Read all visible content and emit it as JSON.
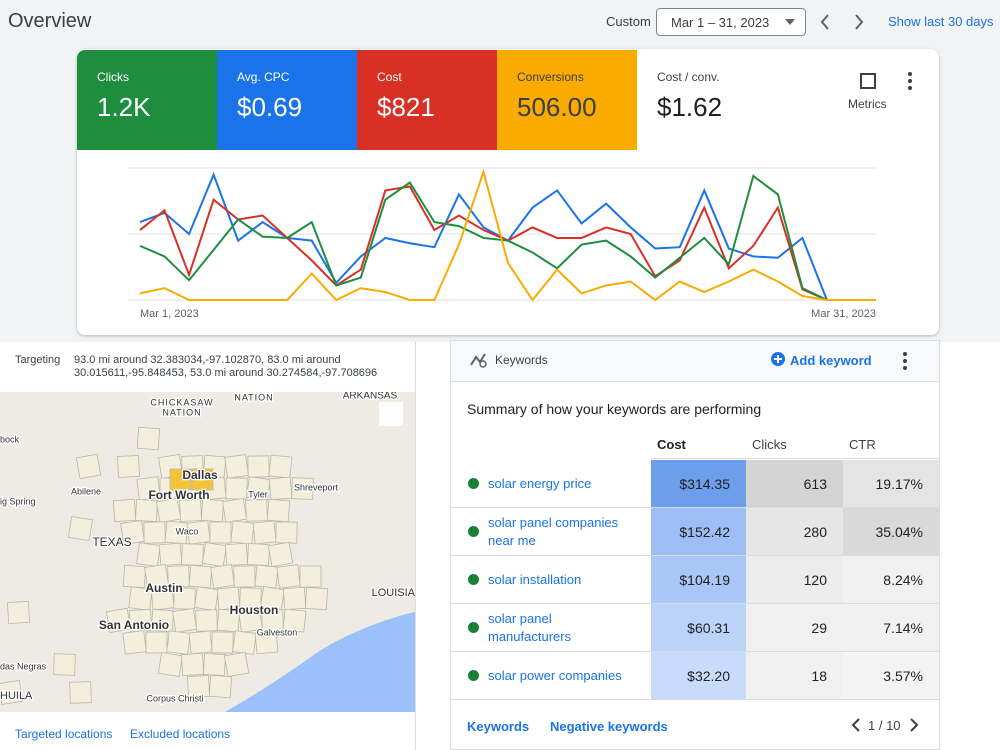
{
  "header": {
    "title": "Overview",
    "range_label": "Custom",
    "date_range": "Mar 1 – 31, 2023",
    "show_last": "Show last 30 days"
  },
  "metrics": [
    {
      "label": "Clicks",
      "value": "1.2K",
      "color": "#1e8e3e"
    },
    {
      "label": "Avg. CPC",
      "value": "$0.69",
      "color": "#1a73e8"
    },
    {
      "label": "Cost",
      "value": "$821",
      "color": "#d93025"
    },
    {
      "label": "Conversions",
      "value": "506.00",
      "color": "#f9ab00"
    },
    {
      "label": "Cost / conv.",
      "value": "$1.62",
      "color": "#ffffff"
    }
  ],
  "metrics_button": "Metrics",
  "chart_data": {
    "type": "line",
    "categories": [
      "Mar 1, 2023",
      null,
      null,
      null,
      null,
      null,
      null,
      null,
      null,
      null,
      null,
      null,
      null,
      null,
      null,
      null,
      null,
      null,
      null,
      null,
      null,
      null,
      null,
      null,
      null,
      null,
      null,
      null,
      null,
      null,
      "Mar 31, 2023"
    ],
    "ylim": [
      0,
      100
    ],
    "series": [
      {
        "color": "#1a73e8",
        "values": [
          59,
          66,
          50,
          95,
          45,
          59,
          47,
          45,
          13,
          33,
          47,
          43,
          40,
          80,
          55,
          45,
          70,
          83,
          58,
          73,
          55,
          39,
          40,
          83,
          39,
          33,
          32,
          47,
          0,
          0,
          0
        ]
      },
      {
        "color": "#d93025",
        "values": [
          53,
          68,
          19,
          76,
          61,
          64,
          47,
          30,
          11,
          23,
          83,
          86,
          53,
          64,
          53,
          45,
          55,
          47,
          47,
          55,
          50,
          18,
          30,
          70,
          24,
          41,
          70,
          8,
          0,
          0,
          0
        ]
      },
      {
        "color": "#1e8e3e",
        "values": [
          41,
          33,
          15,
          38,
          61,
          48,
          47,
          59,
          11,
          17,
          76,
          89,
          59,
          56,
          47,
          45,
          36,
          24,
          42,
          45,
          33,
          17,
          32,
          47,
          27,
          94,
          80,
          9,
          0,
          0,
          0
        ]
      },
      {
        "color": "#f9ab00",
        "values": [
          5,
          9,
          0,
          0,
          0,
          0,
          0,
          20,
          0,
          9,
          6,
          0,
          0,
          42,
          97,
          28,
          0,
          23,
          5,
          11,
          14,
          0,
          14,
          6,
          14,
          23,
          14,
          3,
          0,
          0,
          0
        ]
      }
    ]
  },
  "targeting": {
    "label": "Targeting",
    "text": "93.0 mi around 32.383034,-97.102870, 83.0 mi around 30.015611,-95.848453, 53.0 mi around 30.274584,-97.708696"
  },
  "map": {
    "labels": [
      "CHICKASAW",
      "NATION",
      "NATION",
      "ARKANSAS",
      "bock",
      "Dallas",
      "Fort Worth",
      "Abilene",
      "ig Spring",
      "Tyler",
      "Shreveport",
      "TEXAS",
      "Waco",
      "Austin",
      "LOUISIA",
      "Houston",
      "Galveston",
      "San Antonio",
      "das Negras",
      "HUILA",
      "Corpus Christi"
    ]
  },
  "location_tabs": [
    "Targeted locations",
    "Excluded locations"
  ],
  "keywords": {
    "title": "Keywords",
    "add": "Add keyword",
    "summary": "Summary of how your keywords are performing",
    "columns": [
      "Cost",
      "Clicks",
      "CTR"
    ],
    "rows": [
      [
        "solar energy price",
        "$314.35",
        "613",
        "19.17%"
      ],
      [
        "solar panel companies near me",
        "$152.42",
        "280",
        "35.04%"
      ],
      [
        "solar installation",
        "$104.19",
        "120",
        "8.24%"
      ],
      [
        "solar panel manufacturers",
        "$60.31",
        "29",
        "7.14%"
      ],
      [
        "solar power companies",
        "$32.20",
        "18",
        "3.57%"
      ]
    ],
    "tabs": [
      "Keywords",
      "Negative keywords"
    ],
    "pagination": "1 / 10"
  }
}
